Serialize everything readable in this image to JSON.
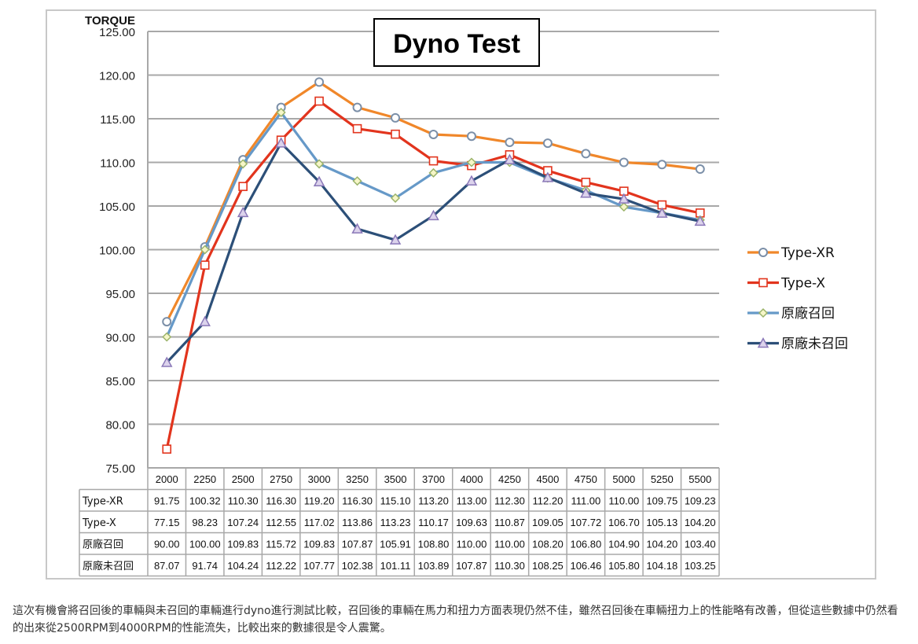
{
  "chart_data": {
    "type": "line",
    "title": "Dyno Test",
    "ylabel": "TORQUE",
    "ylim": [
      75,
      125
    ],
    "ytick_step": 5,
    "grid": true,
    "legend_position": "right",
    "x": [
      "2000",
      "2250",
      "2500",
      "2750",
      "3000",
      "3250",
      "3500",
      "3700",
      "4000",
      "4250",
      "4500",
      "4750",
      "5000",
      "5250",
      "5500"
    ],
    "series": [
      {
        "name": "Type-XR",
        "color": "#f0872a",
        "marker": "circle",
        "values": [
          91.75,
          100.32,
          110.3,
          116.3,
          119.2,
          116.3,
          115.1,
          113.2,
          113.0,
          112.3,
          112.2,
          111.0,
          110.0,
          109.75,
          109.23
        ]
      },
      {
        "name": "Type-X",
        "color": "#e2341d",
        "marker": "square",
        "values": [
          77.15,
          98.23,
          107.24,
          112.55,
          117.02,
          113.86,
          113.23,
          110.17,
          109.63,
          110.87,
          109.05,
          107.72,
          106.7,
          105.13,
          104.2
        ]
      },
      {
        "name": "原廠召回",
        "color": "#6699c8",
        "marker": "diamond",
        "values": [
          90.0,
          100.0,
          109.83,
          115.72,
          109.83,
          107.87,
          105.91,
          108.8,
          110.0,
          110.0,
          108.2,
          106.8,
          104.9,
          104.2,
          103.4
        ]
      },
      {
        "name": "原廠未召回",
        "color": "#2c4f78",
        "marker": "triangle",
        "values": [
          87.07,
          91.74,
          104.24,
          112.22,
          107.77,
          102.38,
          101.11,
          103.89,
          107.87,
          110.3,
          108.25,
          106.46,
          105.8,
          104.18,
          103.25
        ]
      }
    ]
  },
  "caption": "這次有機會將召回後的車輛與未召回的車輛進行dyno進行測試比較，召回後的車輛在馬力和扭力方面表現仍然不佳，雖然召回後在車輛扭力上的性能略有改善，但從這些數據中仍然看的出來從2500RPM到4000RPM的性能流失，比較出來的數據很是令人震驚。"
}
